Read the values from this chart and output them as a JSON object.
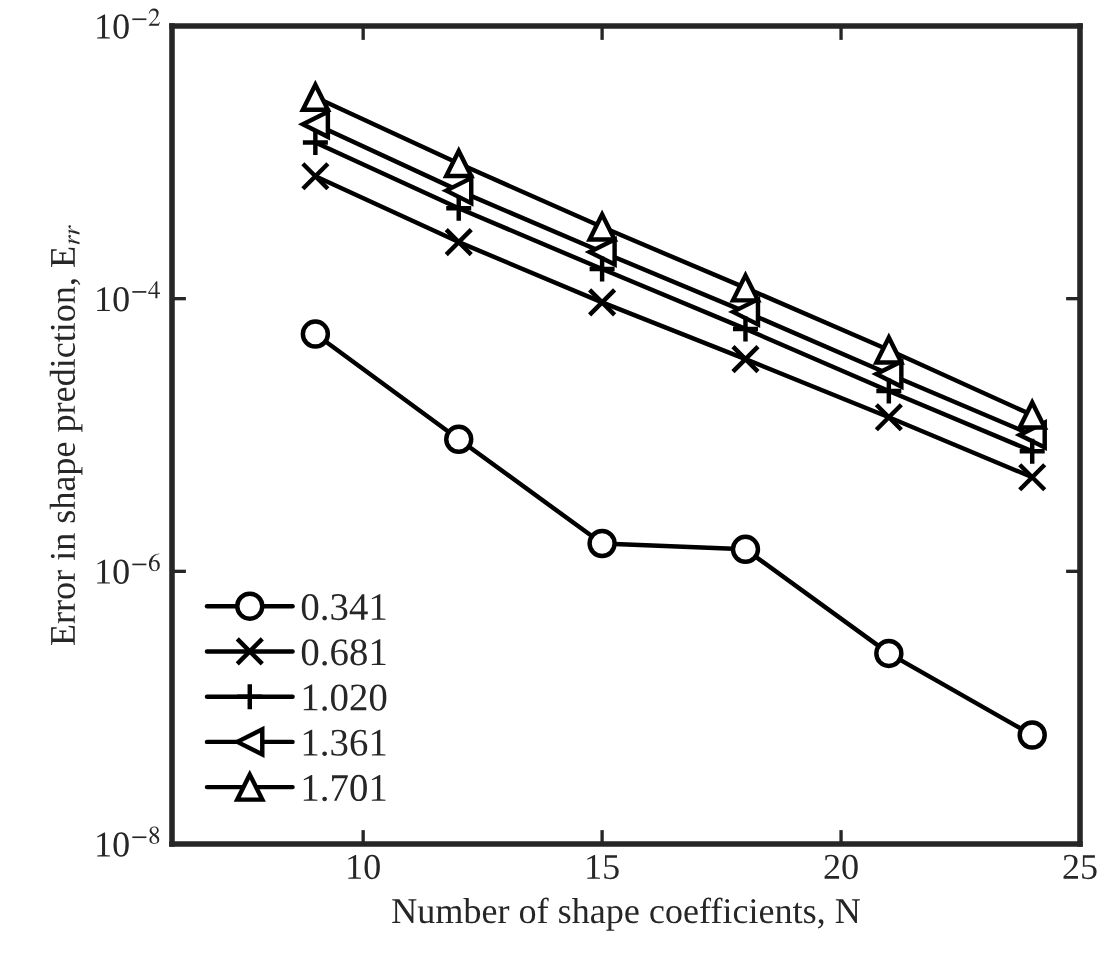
{
  "chart_data": {
    "type": "line",
    "xlabel": "Number of shape coefficients, N",
    "ylabel": "Error in shape prediction, E$_{rr}$",
    "log": "y",
    "xlim": [
      6,
      25
    ],
    "xticks": [
      10,
      15,
      20,
      25
    ],
    "ylim": [
      1e-08,
      0.01
    ],
    "yticks": [
      {
        "value": 1e-08,
        "label": "10$^{−8}$"
      },
      {
        "value": 1e-06,
        "label": "10$^{−6}$"
      },
      {
        "value": 0.0001,
        "label": "10$^{−4}$"
      },
      {
        "value": 0.01,
        "label": "10$^{−2}$"
      }
    ],
    "grid": false,
    "legend": "bottom left",
    "line_style": "solid",
    "x": [
      9,
      12,
      15,
      18,
      21,
      24
    ],
    "series": [
      {
        "name": "0.341",
        "color": "#000000",
        "marker": "circle",
        "values": [
          5.5e-05,
          9.3e-06,
          1.6e-06,
          1.45e-06,
          2.5e-07,
          6.3e-08
        ]
      },
      {
        "name": "0.681",
        "color": "#000000",
        "marker": "cross",
        "values": [
          0.00079,
          0.00026,
          9.4e-05,
          3.6e-05,
          1.35e-05,
          4.9e-06
        ]
      },
      {
        "name": "1.020",
        "color": "#000000",
        "marker": "plus",
        "values": [
          0.0014,
          0.00046,
          0.000165,
          6e-05,
          2.1e-05,
          7.6e-06
        ]
      },
      {
        "name": "1.361",
        "color": "#000000",
        "marker": "triangle_left",
        "values": [
          0.0019,
          0.00062,
          0.00022,
          8e-05,
          2.8e-05,
          1e-05
        ]
      },
      {
        "name": "1.701",
        "color": "#000000",
        "marker": "triangle",
        "values": [
          0.003,
          0.00098,
          0.000335,
          0.00012,
          4.2e-05,
          1.4e-05
        ]
      }
    ]
  }
}
